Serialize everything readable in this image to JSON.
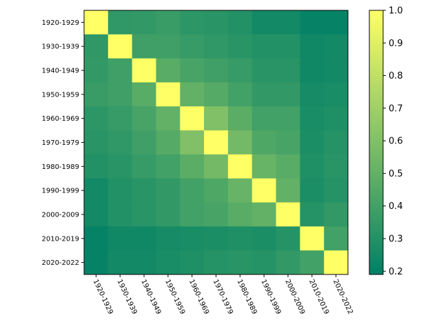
{
  "chart_data": {
    "type": "heatmap",
    "title": "",
    "xlabel": "",
    "ylabel": "",
    "categories": [
      "1920-1929",
      "1930-1939",
      "1940-1949",
      "1950-1959",
      "1960-1969",
      "1970-1979",
      "1980-1989",
      "1990-1999",
      "2000-2009",
      "2010-2019",
      "2020-2022"
    ],
    "matrix": [
      [
        1.0,
        0.34,
        0.35,
        0.37,
        0.33,
        0.32,
        0.3,
        0.25,
        0.25,
        0.21,
        0.21
      ],
      [
        0.34,
        1.0,
        0.39,
        0.39,
        0.36,
        0.34,
        0.32,
        0.3,
        0.3,
        0.24,
        0.25
      ],
      [
        0.35,
        0.39,
        1.0,
        0.47,
        0.42,
        0.39,
        0.36,
        0.32,
        0.32,
        0.24,
        0.25
      ],
      [
        0.37,
        0.39,
        0.47,
        1.0,
        0.5,
        0.46,
        0.4,
        0.35,
        0.35,
        0.26,
        0.27
      ],
      [
        0.33,
        0.36,
        0.42,
        0.5,
        1.0,
        0.6,
        0.48,
        0.4,
        0.4,
        0.27,
        0.29
      ],
      [
        0.32,
        0.34,
        0.39,
        0.46,
        0.6,
        1.0,
        0.56,
        0.44,
        0.42,
        0.28,
        0.31
      ],
      [
        0.3,
        0.32,
        0.36,
        0.4,
        0.48,
        0.56,
        1.0,
        0.52,
        0.47,
        0.29,
        0.32
      ],
      [
        0.25,
        0.3,
        0.32,
        0.35,
        0.4,
        0.44,
        0.52,
        1.0,
        0.5,
        0.28,
        0.31
      ],
      [
        0.25,
        0.3,
        0.32,
        0.35,
        0.4,
        0.42,
        0.47,
        0.5,
        1.0,
        0.31,
        0.35
      ],
      [
        0.21,
        0.24,
        0.24,
        0.26,
        0.27,
        0.28,
        0.29,
        0.28,
        0.31,
        1.0,
        0.4
      ],
      [
        0.21,
        0.25,
        0.25,
        0.27,
        0.29,
        0.31,
        0.32,
        0.31,
        0.35,
        0.4,
        1.0
      ]
    ],
    "colorbar": {
      "min": 0.19,
      "max": 1.0,
      "ticks": [
        "0.2",
        "0.3",
        "0.4",
        "0.5",
        "0.6",
        "0.7",
        "0.8",
        "0.9",
        "1.0"
      ],
      "colormap": "summer",
      "colors": [
        "#008066",
        "#ffff66"
      ]
    },
    "grid": false,
    "legend": "colorbar-right"
  }
}
